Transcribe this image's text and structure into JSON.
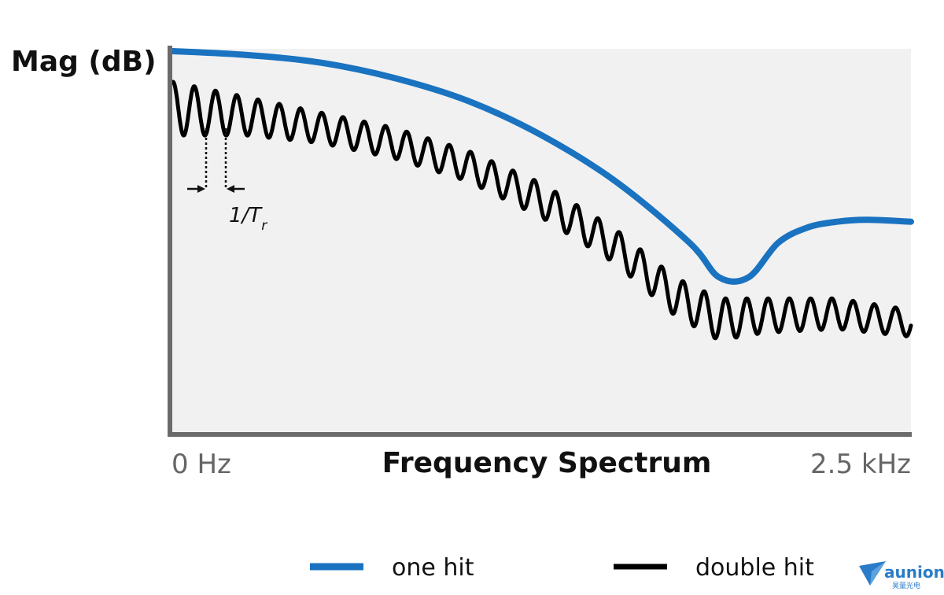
{
  "chart_data": {
    "type": "line",
    "ylabel": "Mag (dB)",
    "xlabel": "Frequency Spectrum",
    "xtick_labels": [
      "0 Hz",
      "2.5 kHz"
    ],
    "xlim": [
      0,
      2.5
    ],
    "ylim": [
      0,
      100
    ],
    "grid": false,
    "legend_placement": "bottom",
    "series": [
      {
        "name": "one hit",
        "color": "#1a73c0",
        "x": [
          0,
          0.25,
          0.5,
          0.75,
          1.0,
          1.25,
          1.5,
          1.75,
          1.85,
          1.95,
          2.05,
          2.15,
          2.25,
          2.35,
          2.5
        ],
        "y": [
          100,
          99,
          97,
          93,
          87,
          78,
          66,
          50,
          41,
          41,
          50,
          54,
          55.5,
          56,
          55.5
        ]
      },
      {
        "name": "double hit",
        "color": "#000000",
        "x": [
          0,
          0.25,
          0.5,
          0.75,
          1.0,
          1.25,
          1.5,
          1.7,
          1.85,
          2.0,
          2.25,
          2.5
        ],
        "y": [
          85,
          83,
          80,
          76,
          70,
          61,
          49,
          36,
          30,
          31,
          31.5,
          29
        ],
        "ripple_amplitude": [
          7,
          5,
          4,
          4,
          4,
          4.5,
          4.5,
          5,
          5.5,
          4.5,
          4,
          3.5
        ],
        "ripple_period": 0.072
      }
    ],
    "annotations": [
      {
        "text": "1/T",
        "subscript": "r"
      }
    ]
  },
  "legend": {
    "items": [
      "one hit",
      "double hit"
    ]
  },
  "brand": {
    "name": "aunion",
    "sub": "昊量光电"
  }
}
